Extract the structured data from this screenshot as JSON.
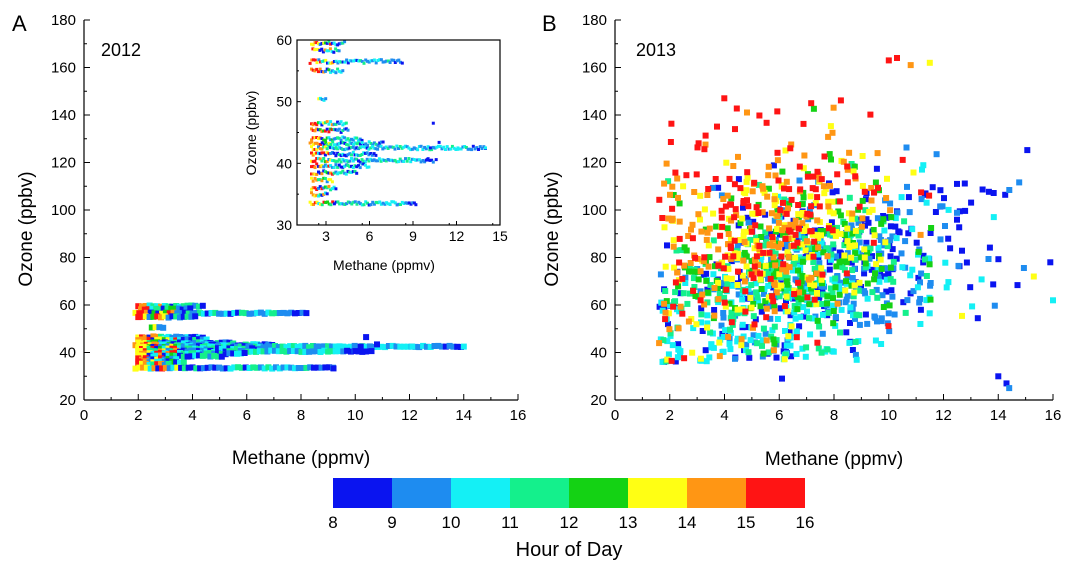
{
  "colorbar": {
    "title": "Hour of Day",
    "ticks": [
      "8",
      "9",
      "10",
      "11",
      "12",
      "13",
      "14",
      "15",
      "16"
    ],
    "colors": [
      "#0a14f0",
      "#1e8cf0",
      "#14f0f5",
      "#14f08c",
      "#14d214",
      "#ffff14",
      "#ff9614",
      "#ff1414"
    ]
  },
  "chart_data": [
    {
      "panel": "A",
      "type": "scatter",
      "title": "2012",
      "xlabel": "Methane (ppmv)",
      "ylabel": "Ozone (ppbv)",
      "xlim": [
        0,
        16
      ],
      "ylim": [
        20,
        180
      ],
      "xticks": [
        "0",
        "2",
        "4",
        "6",
        "8",
        "10",
        "12",
        "14",
        "16"
      ],
      "yticks": [
        "20",
        "40",
        "60",
        "80",
        "100",
        "120",
        "140",
        "160",
        "180"
      ],
      "color_encoding": "Hour of Day",
      "bands": [
        {
          "y": 59.5,
          "x_min": 2.0,
          "x_max": 4.4
        },
        {
          "y": 58.3,
          "x_min": 2.1,
          "x_max": 4.0
        },
        {
          "y": 56.5,
          "x_min": 1.9,
          "x_max": 8.3
        },
        {
          "y": 55.0,
          "x_min": 2.0,
          "x_max": 4.2
        },
        {
          "y": 50.5,
          "x_min": 2.5,
          "x_max": 3.0
        },
        {
          "y": 46.5,
          "x_min": 2.0,
          "x_max": 4.5
        },
        {
          "y": 45.3,
          "x_min": 2.0,
          "x_max": 4.6
        },
        {
          "y": 44.0,
          "x_min": 2.0,
          "x_max": 5.5
        },
        {
          "y": 43.2,
          "x_min": 1.9,
          "x_max": 7.0
        },
        {
          "y": 42.5,
          "x_min": 2.0,
          "x_max": 14.0
        },
        {
          "y": 41.5,
          "x_min": 2.0,
          "x_max": 6.5
        },
        {
          "y": 40.5,
          "x_min": 2.0,
          "x_max": 10.5
        },
        {
          "y": 39.6,
          "x_min": 2.0,
          "x_max": 6.0
        },
        {
          "y": 38.5,
          "x_min": 2.0,
          "x_max": 5.2
        },
        {
          "y": 37.3,
          "x_min": 2.0,
          "x_max": 3.5
        },
        {
          "y": 36.0,
          "x_min": 2.0,
          "x_max": 3.8
        },
        {
          "y": 35.0,
          "x_min": 2.0,
          "x_max": 3.2
        },
        {
          "y": 33.5,
          "x_min": 1.9,
          "x_max": 9.2
        }
      ],
      "outliers": [
        {
          "x": 10.0,
          "y": 40.6
        },
        {
          "x": 10.2,
          "y": 42.5
        },
        {
          "x": 10.4,
          "y": 46.5
        },
        {
          "x": 10.6,
          "y": 40.6
        },
        {
          "x": 10.8,
          "y": 43.4
        },
        {
          "x": 12.1,
          "y": 42.5
        },
        {
          "x": 14.0,
          "y": 42.5
        },
        {
          "x": 9.2,
          "y": 33.3
        }
      ],
      "inset": {
        "xlabel": "Methane (ppmv)",
        "ylabel": "Ozone (ppbv)",
        "xlim": [
          1,
          15
        ],
        "ylim": [
          30,
          60
        ],
        "xticks": [
          "3",
          "6",
          "9",
          "12",
          "15"
        ],
        "yticks": [
          "30",
          "40",
          "50",
          "60"
        ]
      }
    },
    {
      "panel": "B",
      "type": "scatter",
      "title": "2013",
      "xlabel": "Methane (ppmv)",
      "ylabel": "Ozone (ppbv)",
      "xlim": [
        0,
        16
      ],
      "ylim": [
        20,
        180
      ],
      "xticks": [
        "0",
        "2",
        "4",
        "6",
        "8",
        "10",
        "12",
        "14",
        "16"
      ],
      "yticks": [
        "20",
        "40",
        "60",
        "80",
        "100",
        "120",
        "140",
        "160",
        "180"
      ],
      "color_encoding": "Hour of Day",
      "clusters": [
        {
          "hour": 8,
          "cx": 7.5,
          "cy": 75,
          "sx": 3.0,
          "sy": 17,
          "n": 230
        },
        {
          "hour": 9,
          "cx": 8.0,
          "cy": 75,
          "sx": 2.7,
          "sy": 16,
          "n": 200
        },
        {
          "hour": 10,
          "cx": 6.5,
          "cy": 62,
          "sx": 3.0,
          "sy": 17,
          "n": 200
        },
        {
          "hour": 11,
          "cx": 6.0,
          "cy": 70,
          "sx": 2.6,
          "sy": 15,
          "n": 170
        },
        {
          "hour": 12,
          "cx": 6.5,
          "cy": 80,
          "sx": 2.1,
          "sy": 17,
          "n": 160
        },
        {
          "hour": 13,
          "cx": 6.0,
          "cy": 84,
          "sx": 2.1,
          "sy": 19,
          "n": 170
        },
        {
          "hour": 14,
          "cx": 5.5,
          "cy": 90,
          "sx": 2.2,
          "sy": 22,
          "n": 150
        },
        {
          "hour": 15,
          "cx": 5.5,
          "cy": 95,
          "sx": 2.2,
          "sy": 24,
          "n": 150
        }
      ],
      "extreme_points": [
        {
          "x": 6.1,
          "y": 29,
          "hour": 8
        },
        {
          "x": 14.0,
          "y": 30,
          "hour": 8
        },
        {
          "x": 14.3,
          "y": 27,
          "hour": 8
        },
        {
          "x": 14.4,
          "y": 25,
          "hour": 9
        },
        {
          "x": 10.0,
          "y": 163,
          "hour": 15
        },
        {
          "x": 10.3,
          "y": 164,
          "hour": 15
        },
        {
          "x": 10.8,
          "y": 161,
          "hour": 14
        },
        {
          "x": 11.5,
          "y": 162,
          "hour": 13
        },
        {
          "x": 15.9,
          "y": 78,
          "hour": 8
        },
        {
          "x": 16.0,
          "y": 62,
          "hour": 10
        },
        {
          "x": 15.3,
          "y": 72,
          "hour": 13
        }
      ]
    }
  ]
}
